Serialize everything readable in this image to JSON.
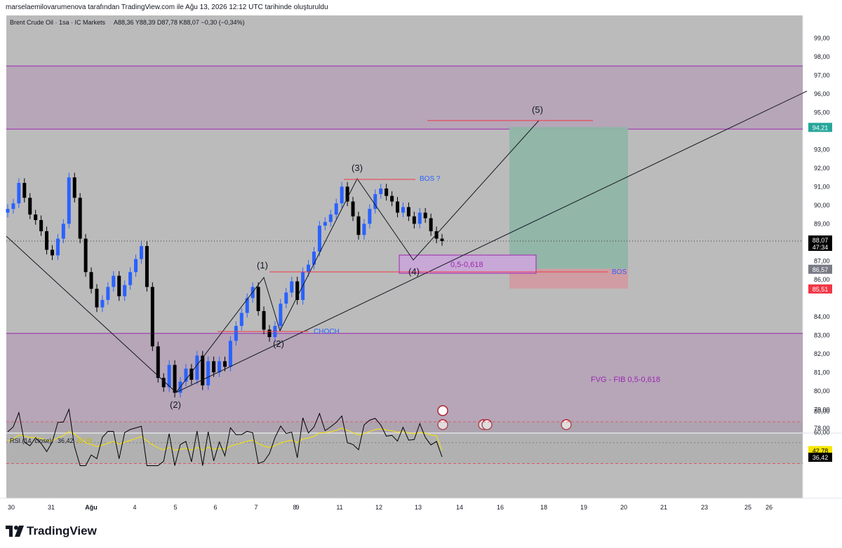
{
  "header": {
    "attribution": "marselaemilovarumenova tarafından TradingView.com ile Ağu 13, 2026 12:12 UTC tarihinde oluşturuldu"
  },
  "legend": {
    "symbol": "Brent Crude Oil · 1sa · IC Markets",
    "open": "A88,36",
    "high": "Y88,39",
    "low": "D87,78",
    "close": "K88,07",
    "change": "−0,30 (−0,34%)"
  },
  "rsi_legend": {
    "label": "RSI (14, close)",
    "value": "36,42",
    "ma_value": "42,78"
  },
  "price_axis": {
    "labels": [
      "99,00",
      "98,00",
      "97,00",
      "96,00",
      "95,00",
      "93,00",
      "92,00",
      "91,00",
      "90,00",
      "89,00",
      "87,00",
      "86,00",
      "84,00",
      "83,00",
      "82,00",
      "81,00",
      "80,00",
      "79,00",
      "78,00"
    ],
    "tags": [
      {
        "text": "94,21",
        "price": 94.21,
        "color": "#26a69a"
      },
      {
        "text": "88,07",
        "sub": "47:34",
        "price": 88.07,
        "color": "#000000"
      },
      {
        "text": "86,57",
        "price": 86.57,
        "color": "#787b86"
      },
      {
        "text": "85,51",
        "price": 85.51,
        "color": "#f23645"
      }
    ]
  },
  "rsi_axis": {
    "labels": [
      "80,00",
      "60,00"
    ],
    "tags": [
      {
        "text": "42,78",
        "value": 42.78,
        "color": "#f7e600",
        "textColor": "#000000"
      },
      {
        "text": "36,42",
        "value": 36.42,
        "color": "#000000",
        "textColor": "#ffffff"
      }
    ]
  },
  "time_axis": {
    "labels": [
      "30",
      "31",
      "Ağu",
      "4",
      "5",
      "6",
      "7",
      "8",
      "9",
      "11",
      "12",
      "13",
      "14",
      "16",
      "18",
      "19",
      "20",
      "21",
      "23",
      "25",
      "26"
    ]
  },
  "annotations": {
    "wave_labels": [
      "(1)",
      "(2)",
      "(2)",
      "(3)",
      "(4)",
      "(5)"
    ],
    "bos_question": "BOS ?",
    "bos": "BOS",
    "choch": "CHOCH",
    "fib_box": "0,5-0,618",
    "fvg": "FVG - FIB 0,5-0,618"
  },
  "colors": {
    "background": "#bbbbbb",
    "zone_fill": "#b6a6b8",
    "zone_line": "#9c27b0",
    "bull": "#2962ff",
    "bear": "#000000",
    "profit": "#8fb5a6",
    "loss": "#d09ba1",
    "rsi_line": "#000000",
    "rsi_ma": "#f7e600",
    "annotation_purple": "#9c27b0",
    "annotation_blue": "#2962ff",
    "annotation_red": "#f23645"
  },
  "chart_data": {
    "type": "candlestick",
    "symbol": "Brent Crude Oil · 1sa · IC Markets",
    "ylim": [
      77.5,
      99.6
    ],
    "current_price": 88.07,
    "zones": [
      {
        "name": "upper",
        "from": 94.1,
        "to": 97.5
      },
      {
        "name": "lower",
        "from": 77.5,
        "to": 83.1
      }
    ],
    "position": {
      "entry": 86.57,
      "target": 94.21,
      "stop": 85.51
    },
    "waves": [
      {
        "label": "(2)",
        "price": 79.5
      },
      {
        "label": "(1)",
        "price": 85.8
      },
      {
        "label": "(2)",
        "price": 82.8
      },
      {
        "label": "(3)",
        "price": 91.1
      },
      {
        "label": "(4)",
        "price": 86.7
      },
      {
        "label": "(5)",
        "price": 94.2
      }
    ],
    "levels": [
      {
        "label": "BOS ?",
        "price": 91.05
      },
      {
        "label": "BOS",
        "price": 85.95
      },
      {
        "label": "CHOCH",
        "price": 82.85
      }
    ],
    "closes_hourly_sampled": [
      89.8,
      90.1,
      91.2,
      90.4,
      89.5,
      89.2,
      88.6,
      87.6,
      87.3,
      88.2,
      89.0,
      91.5,
      90.4,
      88.2,
      86.4,
      85.5,
      84.5,
      84.9,
      85.6,
      86.2,
      85.1,
      85.7,
      86.4,
      87.1,
      87.8,
      85.6,
      82.4,
      80.7,
      80.2,
      81.4,
      79.9,
      80.5,
      81.2,
      80.6,
      81.9,
      80.3,
      81.6,
      81.0,
      81.6,
      81.3,
      82.7,
      83.5,
      84.2,
      85.0,
      85.6,
      84.3,
      83.3,
      82.9,
      83.5,
      84.7,
      85.3,
      85.9,
      84.9,
      86.4,
      86.8,
      87.5,
      88.9,
      89.1,
      89.5,
      90.1,
      91.0,
      90.2,
      89.4,
      88.4,
      89.0,
      89.8,
      90.6,
      90.9,
      90.5,
      90.2,
      89.6,
      89.9,
      89.4,
      89.0,
      89.6,
      89.3,
      88.6,
      88.2,
      88.07
    ],
    "rsi": {
      "period": 14,
      "value": 36.42,
      "ma": 42.78,
      "ylim": [
        25,
        85
      ],
      "bands": [
        70,
        50,
        30
      ]
    }
  }
}
